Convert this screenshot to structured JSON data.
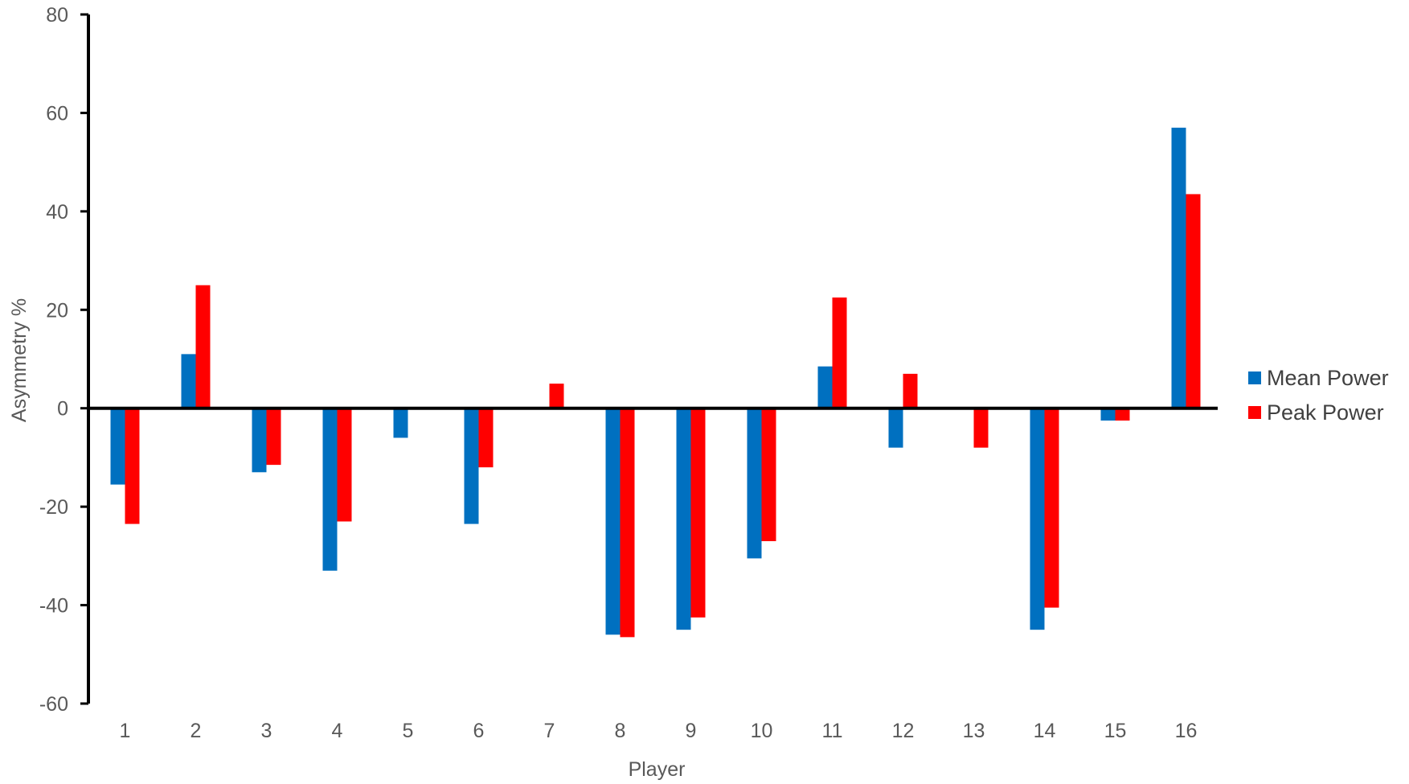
{
  "chart_data": {
    "type": "bar",
    "xlabel": "Player",
    "ylabel": "Asymmetry  %",
    "ylim": [
      -60,
      80
    ],
    "yticks": [
      80,
      60,
      40,
      20,
      0,
      -20,
      -40,
      -60
    ],
    "categories": [
      "1",
      "2",
      "3",
      "4",
      "5",
      "6",
      "7",
      "8",
      "9",
      "10",
      "11",
      "12",
      "13",
      "14",
      "15",
      "16"
    ],
    "series": [
      {
        "name": "Mean Power",
        "color": "#0070C0",
        "values": [
          -15.5,
          11,
          -13,
          -33,
          -6,
          -23.5,
          0,
          -46,
          -45,
          -30.5,
          8.5,
          -8,
          0,
          -45,
          -2.5,
          57
        ]
      },
      {
        "name": "Peak Power",
        "color": "#FF0000",
        "values": [
          -23.5,
          25,
          -11.5,
          -23,
          0,
          -12,
          5,
          -46.5,
          -42.5,
          -27,
          22.5,
          7,
          -8,
          -40.5,
          -2.5,
          43.5
        ]
      }
    ],
    "grid": false,
    "legend_position": "right"
  }
}
